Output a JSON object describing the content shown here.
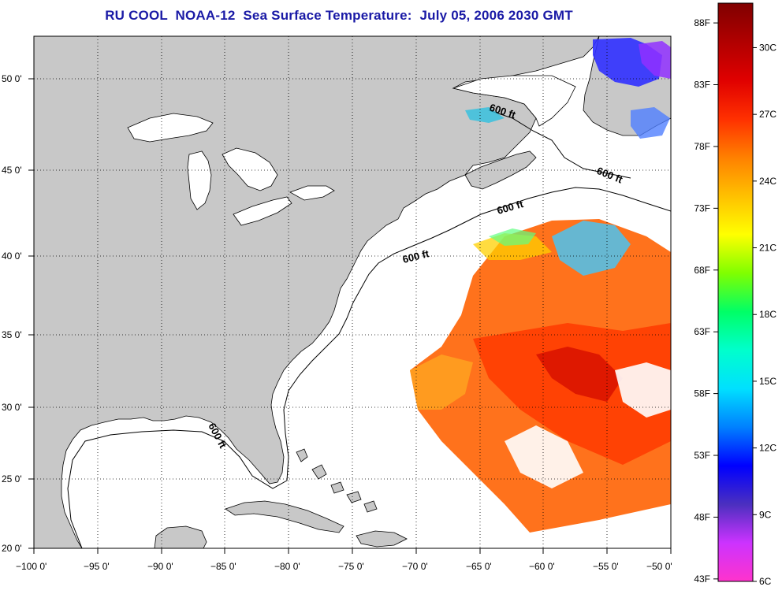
{
  "title": "RU COOL  NOAA-12  Sea Surface Temperature:  July 05, 2006 2030 GMT",
  "map": {
    "lon_range": [
      -100,
      -50
    ],
    "lat_range": [
      20,
      52.5
    ],
    "x_ticks": [
      "−100 0'",
      "−95 0'",
      "−90 0'",
      "−85 0'",
      "−80 0'",
      "−75 0'",
      "−70 0'",
      "−65 0'",
      "−60 0'",
      "−55 0'",
      "−50 0'"
    ],
    "y_ticks": [
      "20 0'",
      "25 0'",
      "30 0'",
      "35 0'",
      "40 0'",
      "45 0'",
      "50 0'"
    ],
    "depth_contour_label": "600 ft",
    "land_color": "#c8c8c8",
    "ocean_color": "#ffffff"
  },
  "colorbar": {
    "fahrenheit_ticks": [
      "88F",
      "83F",
      "78F",
      "73F",
      "68F",
      "63F",
      "58F",
      "53F",
      "48F",
      "43F"
    ],
    "celsius_ticks": [
      "30C",
      "27C",
      "24C",
      "21C",
      "18C",
      "15C",
      "12C",
      "9C",
      "6C"
    ],
    "range_c": [
      6,
      32
    ],
    "colors": [
      "#ff33cc",
      "#cc33ff",
      "#4b2fbf",
      "#0000ff",
      "#0080ff",
      "#00e0ff",
      "#00ffcc",
      "#00ff66",
      "#80ff00",
      "#ffff00",
      "#ffc000",
      "#ff8000",
      "#ff3000",
      "#e00000",
      "#b00000",
      "#800000"
    ]
  }
}
